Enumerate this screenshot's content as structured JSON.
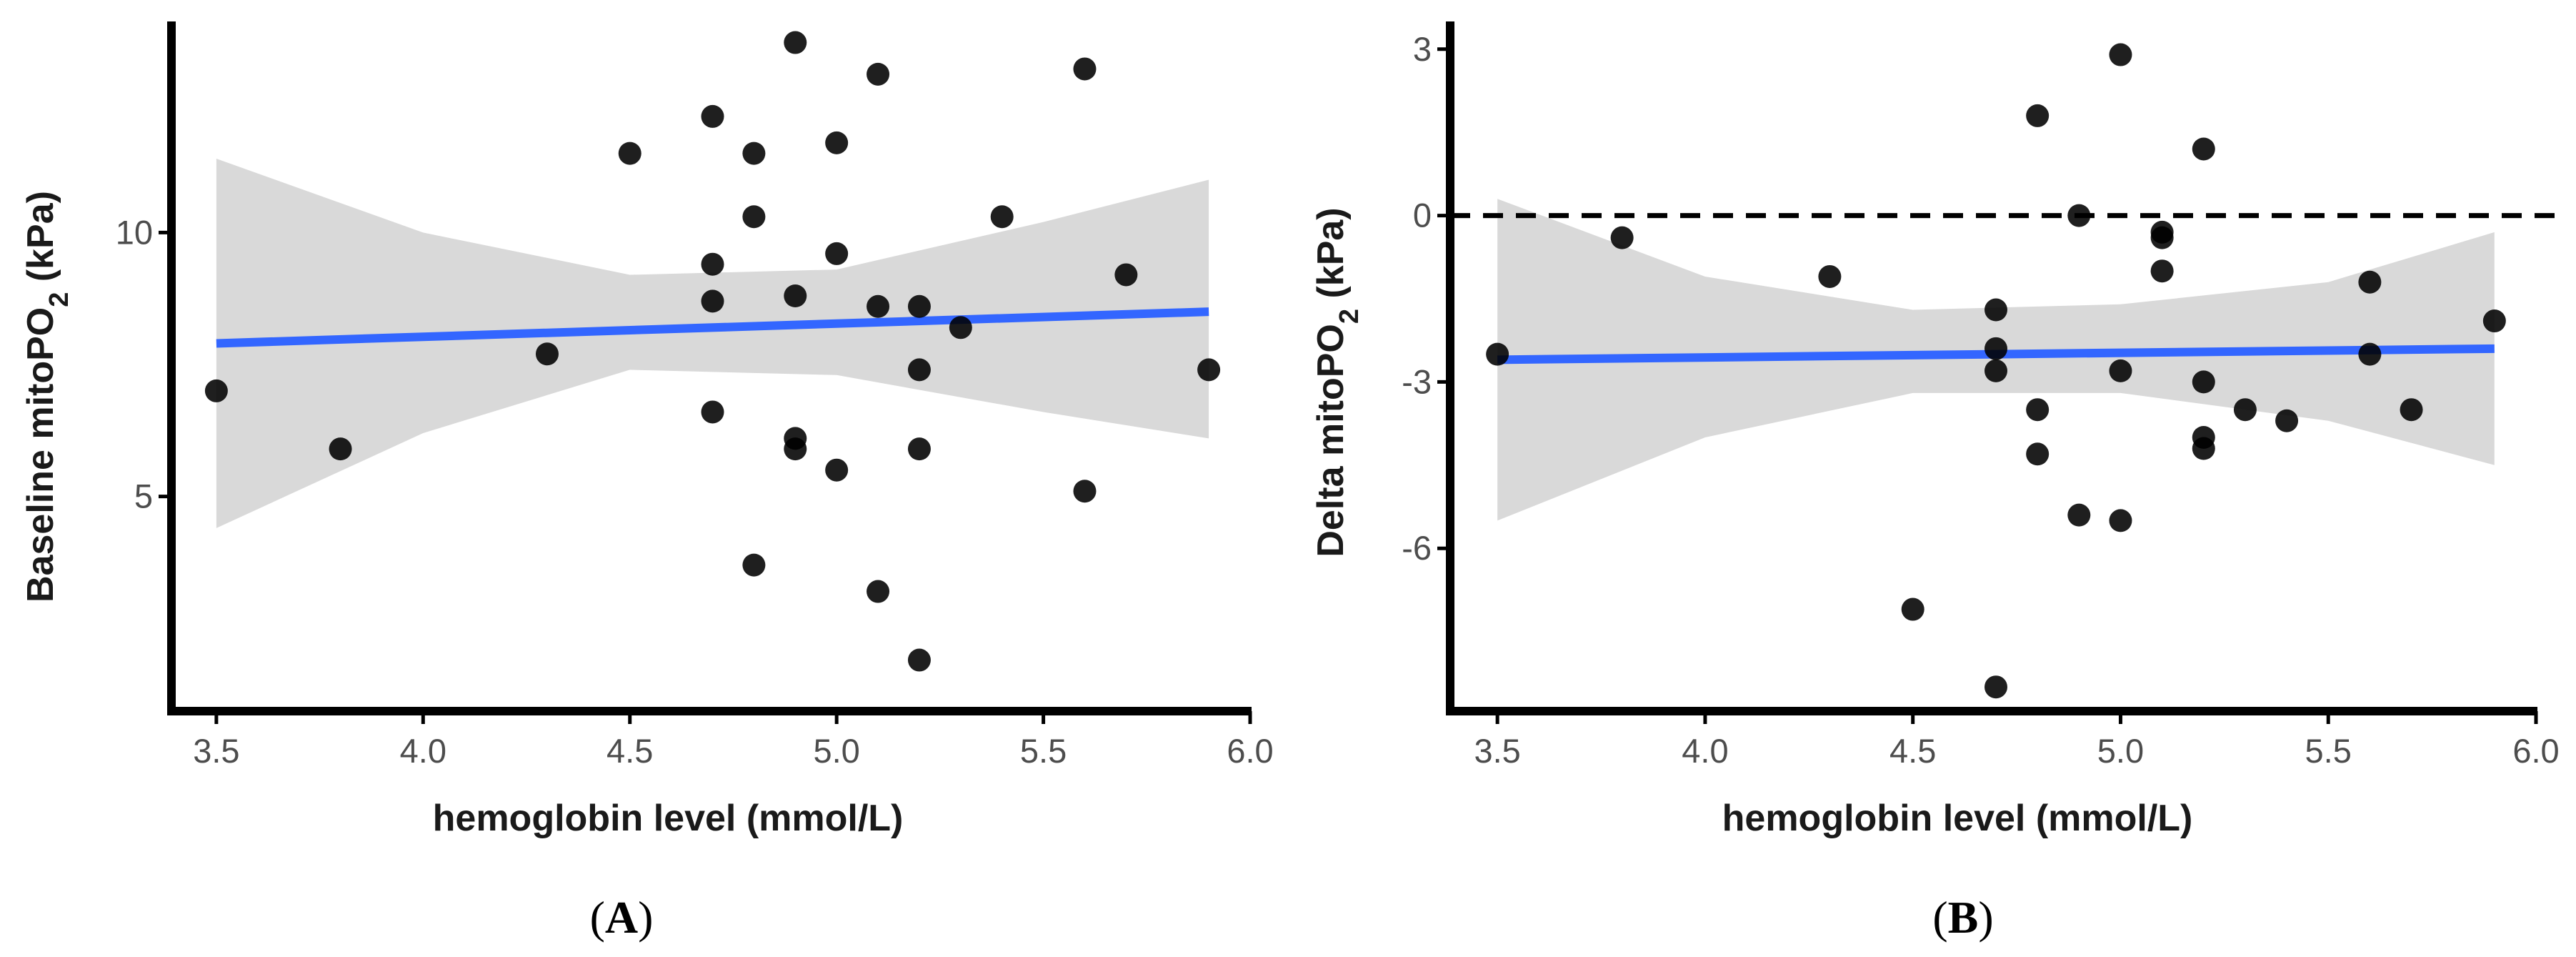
{
  "colors": {
    "points": "#000000",
    "fit_line": "#3366ff",
    "ribbon": "#d9d9d9",
    "axis": "#000000",
    "reference_line": "#000000"
  },
  "chart_data": [
    {
      "panel_label": "A",
      "type": "scatter",
      "xlabel": "hemoglobin level (mmol/L)",
      "ylabel": "Baseline mitoPO2 (kPa)",
      "ylabel_parts": {
        "main": "Baseline mitoPO",
        "subscript": "2",
        "unit": " (kPa)"
      },
      "xlim": [
        3.4,
        6.0
      ],
      "ylim": [
        1.0,
        14.0
      ],
      "xticks": [
        3.5,
        4.0,
        4.5,
        5.0,
        5.5,
        6.0
      ],
      "xtick_labels": [
        "3.5",
        "4.0",
        "4.5",
        "5.0",
        "5.5",
        "6.0"
      ],
      "yticks": [
        5,
        10
      ],
      "ytick_labels": [
        "5",
        "10"
      ],
      "points": [
        [
          3.5,
          7.0
        ],
        [
          3.8,
          5.9
        ],
        [
          4.3,
          7.7
        ],
        [
          4.5,
          11.5
        ],
        [
          4.7,
          12.2
        ],
        [
          4.7,
          9.4
        ],
        [
          4.7,
          8.7
        ],
        [
          4.7,
          6.6
        ],
        [
          4.8,
          11.5
        ],
        [
          4.8,
          10.3
        ],
        [
          4.8,
          3.7
        ],
        [
          4.9,
          13.6
        ],
        [
          4.9,
          8.8
        ],
        [
          4.9,
          6.1
        ],
        [
          4.9,
          5.9
        ],
        [
          5.0,
          11.7
        ],
        [
          5.0,
          9.6
        ],
        [
          5.0,
          5.5
        ],
        [
          5.1,
          13.0
        ],
        [
          5.1,
          8.6
        ],
        [
          5.1,
          3.2
        ],
        [
          5.2,
          8.6
        ],
        [
          5.2,
          7.4
        ],
        [
          5.2,
          5.9
        ],
        [
          5.2,
          1.9
        ],
        [
          5.3,
          8.2
        ],
        [
          5.4,
          10.3
        ],
        [
          5.6,
          13.1
        ],
        [
          5.6,
          5.1
        ],
        [
          5.7,
          9.2
        ],
        [
          5.9,
          7.4
        ]
      ],
      "fit_line": {
        "x": [
          3.5,
          5.9
        ],
        "y": [
          7.9,
          8.5
        ]
      },
      "confidence_band": {
        "x": [
          3.5,
          4.0,
          4.5,
          5.0,
          5.5,
          5.9
        ],
        "lower": [
          4.4,
          6.2,
          7.4,
          7.3,
          6.6,
          6.1
        ],
        "upper": [
          11.4,
          10.0,
          9.2,
          9.3,
          10.2,
          11.0
        ]
      }
    },
    {
      "panel_label": "B",
      "type": "scatter",
      "xlabel": "hemoglobin level (mmol/L)",
      "ylabel": "Delta mitoPO2 (kPa)",
      "ylabel_parts": {
        "main": "Delta mitoPO",
        "subscript": "2",
        "unit": " (kPa)"
      },
      "xlim": [
        3.4,
        6.0
      ],
      "ylim": [
        -9.0,
        3.5
      ],
      "xticks": [
        3.5,
        4.0,
        4.5,
        5.0,
        5.5,
        6.0
      ],
      "xtick_labels": [
        "3.5",
        "4.0",
        "4.5",
        "5.0",
        "5.5",
        "6.0"
      ],
      "yticks": [
        -6,
        -3,
        0,
        3
      ],
      "ytick_labels": [
        "-6",
        "-3",
        "0",
        "3"
      ],
      "reference_line": {
        "y": 0,
        "style": "dashed"
      },
      "points": [
        [
          3.5,
          -2.5
        ],
        [
          3.8,
          -0.4
        ],
        [
          4.3,
          -1.1
        ],
        [
          4.5,
          -7.1
        ],
        [
          4.7,
          -1.7
        ],
        [
          4.7,
          -2.4
        ],
        [
          4.7,
          -2.8
        ],
        [
          4.7,
          -8.5
        ],
        [
          4.8,
          1.8
        ],
        [
          4.8,
          -3.5
        ],
        [
          4.8,
          -4.3
        ],
        [
          4.9,
          0.0
        ],
        [
          4.9,
          -5.4
        ],
        [
          5.0,
          2.9
        ],
        [
          5.0,
          -2.8
        ],
        [
          5.0,
          -5.5
        ],
        [
          5.1,
          -0.3
        ],
        [
          5.1,
          -0.4
        ],
        [
          5.1,
          -1.0
        ],
        [
          5.2,
          1.2
        ],
        [
          5.2,
          -3.0
        ],
        [
          5.2,
          -4.0
        ],
        [
          5.2,
          -4.2
        ],
        [
          5.3,
          -3.5
        ],
        [
          5.4,
          -3.7
        ],
        [
          5.6,
          -1.2
        ],
        [
          5.6,
          -2.5
        ],
        [
          5.7,
          -3.5
        ],
        [
          5.9,
          -1.9
        ]
      ],
      "fit_line": {
        "x": [
          3.5,
          5.9
        ],
        "y": [
          -2.6,
          -2.4
        ]
      },
      "confidence_band": {
        "x": [
          3.5,
          4.0,
          4.5,
          5.0,
          5.5,
          5.9
        ],
        "lower": [
          -5.5,
          -4.0,
          -3.2,
          -3.2,
          -3.7,
          -4.5
        ],
        "upper": [
          0.3,
          -1.1,
          -1.7,
          -1.6,
          -1.2,
          -0.3
        ]
      }
    }
  ]
}
